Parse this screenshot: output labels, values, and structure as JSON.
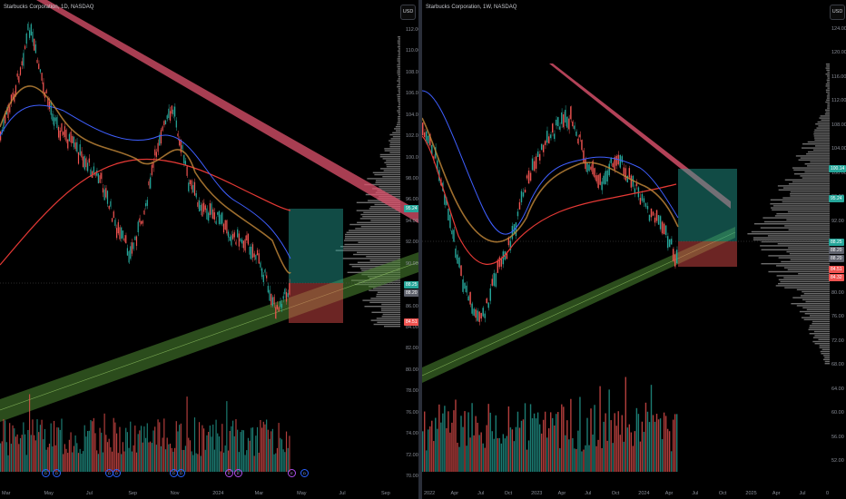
{
  "left": {
    "title": "Starbucks Corporation, 1D, NASDAQ",
    "currency": "USD",
    "y_ticks": [
      "112.00",
      "110.00",
      "108.00",
      "106.00",
      "104.00",
      "102.00",
      "100.00",
      "98.00",
      "96.00",
      "94.00",
      "92.00",
      "90.00",
      "88.00",
      "86.00",
      "84.00",
      "82.00",
      "80.00",
      "78.00",
      "76.00",
      "74.00",
      "72.00",
      "70.00"
    ],
    "x_ticks": [
      "Mar",
      "May",
      "Jul",
      "Sep",
      "Nov",
      "2024",
      "Mar",
      "May",
      "Jul",
      "Sep"
    ],
    "price_tags": [
      "95.24",
      "88.25",
      "88.20",
      "84.51"
    ],
    "event_markers": [
      "D",
      "D",
      "D",
      "D",
      "D",
      "D",
      "E",
      "E",
      "E",
      "D"
    ]
  },
  "right": {
    "title": "Starbucks Corporation, 1W, NASDAQ",
    "currency": "USD",
    "y_ticks": [
      "124.00",
      "120.00",
      "116.00",
      "112.00",
      "108.00",
      "104.00",
      "100.00",
      "96.00",
      "92.00",
      "88.00",
      "84.00",
      "80.00",
      "76.00",
      "72.00",
      "68.00",
      "64.00",
      "60.00",
      "56.00",
      "52.00"
    ],
    "x_ticks": [
      "2022",
      "Apr",
      "Jul",
      "Oct",
      "2023",
      "Apr",
      "Jul",
      "Oct",
      "2024",
      "Apr",
      "Jul",
      "Oct",
      "2025",
      "Apr",
      "Jul",
      "0"
    ],
    "price_tags": [
      "100.14",
      "95.24",
      "88.25",
      "88.20",
      "88.20",
      "84.51",
      "84.32"
    ]
  },
  "colors": {
    "up": "#26a69a",
    "down": "#ef5350",
    "ma_red": "#e53935",
    "ma_blue": "#3f5fff",
    "resistance": "#e0536e",
    "support": "#5f9e3a",
    "target_zone": "#26a69a",
    "stop_zone": "#ef5350"
  }
}
